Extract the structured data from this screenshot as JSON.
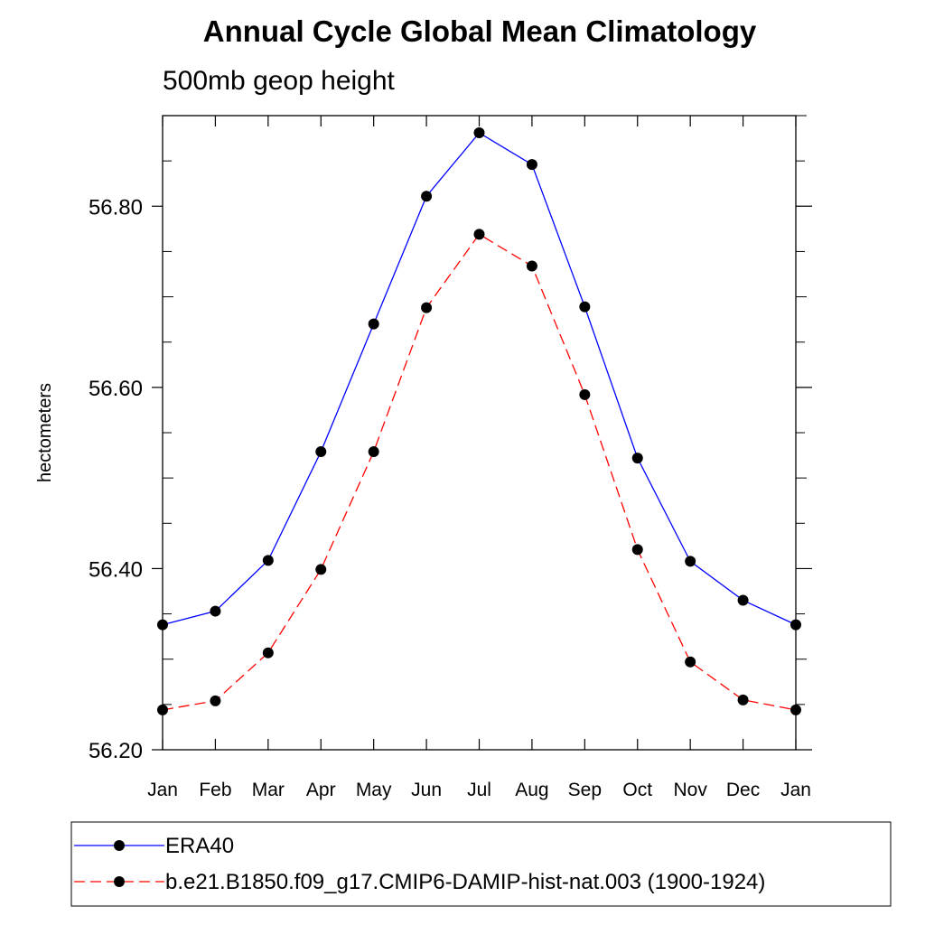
{
  "chart_data": {
    "type": "line",
    "title": "Annual Cycle Global Mean Climatology",
    "subtitle": "500mb geop height",
    "xlabel": "",
    "ylabel": "hectometers",
    "categories": [
      "Jan",
      "Feb",
      "Mar",
      "Apr",
      "May",
      "Jun",
      "Jul",
      "Aug",
      "Sep",
      "Oct",
      "Nov",
      "Dec",
      "Jan"
    ],
    "ylim": [
      56.2,
      56.9
    ],
    "yticks": [
      "56.20",
      "56.40",
      "56.60",
      "56.80"
    ],
    "ytick_values": [
      56.2,
      56.4,
      56.6,
      56.8
    ],
    "grid": false,
    "legend_position": "bottom",
    "series": [
      {
        "name": "ERA40",
        "color": "#0000ff",
        "dashed": false,
        "values": [
          56.338,
          56.353,
          56.409,
          56.529,
          56.67,
          56.811,
          56.881,
          56.846,
          56.689,
          56.522,
          56.408,
          56.365,
          56.338
        ]
      },
      {
        "name": "b.e21.B1850.f09_g17.CMIP6-DAMIP-hist-nat.003 (1900-1924)",
        "color": "#ff0000",
        "dashed": true,
        "values": [
          56.244,
          56.254,
          56.307,
          56.399,
          56.529,
          56.688,
          56.769,
          56.734,
          56.592,
          56.421,
          56.297,
          56.255,
          56.244
        ]
      }
    ]
  }
}
